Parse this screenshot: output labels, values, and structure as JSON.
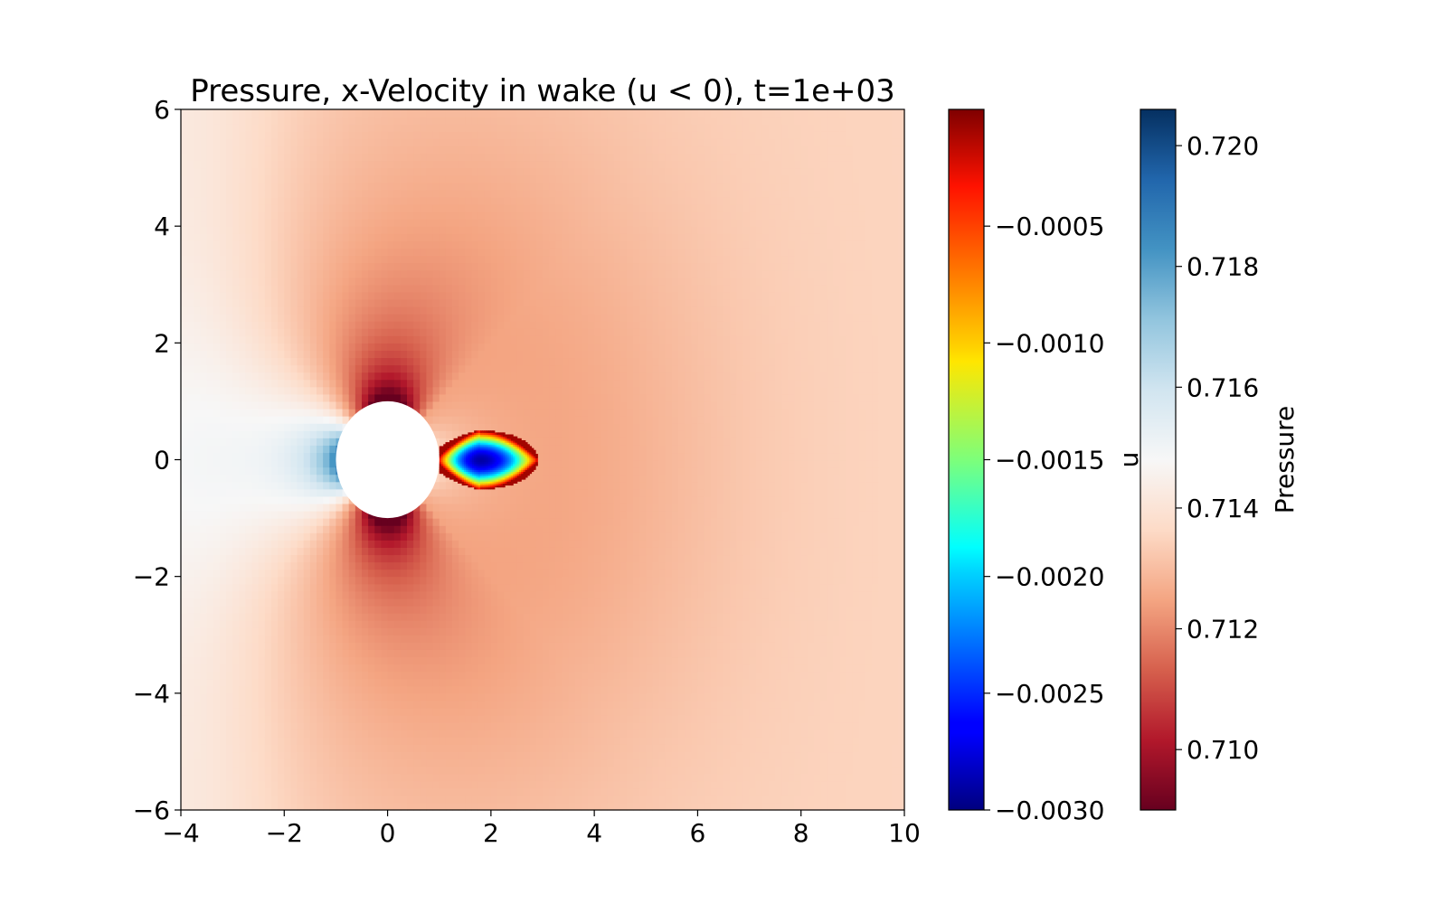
{
  "chart_data": {
    "type": "heatmap",
    "title": "Pressure, x-Velocity in wake (u < 0), t=1e+03",
    "xlabel": "",
    "ylabel": "",
    "xlim": [
      -4,
      10
    ],
    "ylim": [
      -6,
      6
    ],
    "x_ticks": [
      -4,
      -2,
      0,
      2,
      4,
      6,
      8,
      10
    ],
    "x_tick_labels": [
      "−4",
      "−2",
      "0",
      "2",
      "4",
      "6",
      "8",
      "10"
    ],
    "y_ticks": [
      -6,
      -4,
      -2,
      0,
      2,
      4,
      6
    ],
    "y_tick_labels": [
      "−6",
      "−4",
      "−2",
      "0",
      "2",
      "4",
      "6"
    ],
    "grid": false,
    "obstacle": {
      "shape": "circle",
      "center": [
        0,
        0
      ],
      "radius": 1
    },
    "fields": [
      {
        "name": "Pressure",
        "colormap": "RdBu",
        "range": [
          0.709,
          0.7206
        ],
        "colorbar_label": "Pressure",
        "colorbar_ticks": [
          0.71,
          0.712,
          0.714,
          0.716,
          0.718,
          0.72
        ],
        "colorbar_tick_labels": [
          "0.710",
          "0.712",
          "0.714",
          "0.716",
          "0.718",
          "0.720"
        ],
        "upstream_stagnation_value": 0.7185,
        "side_minimum_value": 0.7095,
        "far_field_value": 0.7135
      },
      {
        "name": "u",
        "colormap": "jet",
        "range": [
          -0.003,
          0.0
        ],
        "colorbar_label": "u",
        "colorbar_ticks": [
          -0.0005,
          -0.001,
          -0.0015,
          -0.002,
          -0.0025,
          -0.003
        ],
        "colorbar_tick_labels": [
          "−0.0005",
          "−0.0010",
          "−0.0015",
          "−0.0020",
          "−0.0025",
          "−0.0030"
        ],
        "wake_region": {
          "x_range": [
            1.0,
            2.9
          ],
          "half_width": 0.5,
          "min_value": -0.0029,
          "min_location": [
            1.8,
            0.0
          ]
        }
      }
    ]
  }
}
